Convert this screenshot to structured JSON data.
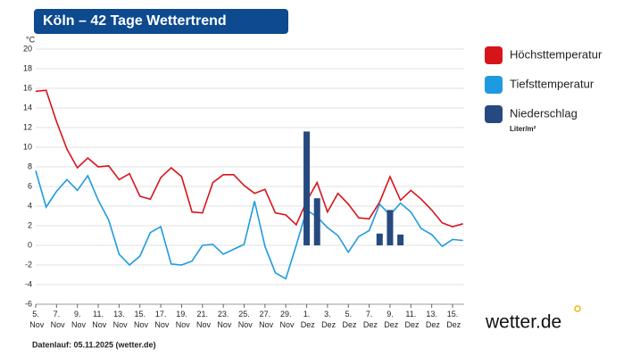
{
  "chart_data": {
    "type": "line",
    "title": "Köln – 42 Tage Wettertrend",
    "y_unit": "°C",
    "footer": "Datenlauf: 05.11.2025 (wetter.de)",
    "logo": "wetter.de",
    "categories": [
      "5. Nov",
      null,
      "7. Nov",
      null,
      "9. Nov",
      null,
      "11. Nov",
      null,
      "13. Nov",
      null,
      "15. Nov",
      null,
      "17. Nov",
      null,
      "19. Nov",
      null,
      "21. Nov",
      null,
      "23. Nov",
      null,
      "25. Nov",
      null,
      "27. Nov",
      null,
      "29. Nov",
      null,
      "1. Dez",
      null,
      "3. Dez",
      null,
      "5. Dez",
      null,
      "7. Dez",
      null,
      "9. Dez",
      null,
      "11. Dez",
      null,
      "13. Dez",
      null,
      "15. Dez",
      null
    ],
    "series": [
      {
        "name": "Höchsttemperatur",
        "color": "#d7141a",
        "values": [
          15.7,
          15.8,
          12.6,
          9.8,
          7.9,
          8.9,
          8.0,
          8.1,
          6.7,
          7.3,
          5.0,
          4.7,
          6.9,
          7.9,
          7.0,
          3.4,
          3.3,
          6.4,
          7.2,
          7.2,
          6.1,
          5.3,
          5.7,
          3.3,
          3.1,
          2.1,
          4.5,
          6.4,
          3.4,
          5.3,
          4.2,
          2.8,
          2.7,
          4.4,
          7.0,
          4.6,
          5.6,
          4.7,
          3.6,
          2.3,
          1.9,
          2.2
        ]
      },
      {
        "name": "Tiefsttemperatur",
        "color": "#1e9be0",
        "values": [
          7.6,
          3.9,
          5.5,
          6.7,
          5.6,
          7.1,
          4.6,
          2.6,
          -0.9,
          -2.0,
          -1.1,
          1.3,
          1.9,
          -1.9,
          -2.0,
          -1.6,
          0.0,
          0.1,
          -0.9,
          -0.4,
          0.1,
          4.5,
          -0.1,
          -2.8,
          -3.4,
          0.0,
          3.6,
          2.9,
          1.8,
          1.0,
          -0.7,
          0.9,
          1.5,
          4.2,
          3.1,
          4.3,
          3.4,
          1.7,
          1.1,
          -0.1,
          0.6,
          0.5
        ]
      },
      {
        "name": "Niederschlag",
        "unit": "Liter/m²",
        "type": "bar",
        "color": "#264a80",
        "values": [
          null,
          null,
          null,
          null,
          null,
          null,
          null,
          null,
          null,
          null,
          null,
          null,
          null,
          null,
          null,
          null,
          null,
          null,
          null,
          null,
          null,
          null,
          null,
          null,
          null,
          null,
          11.6,
          4.8,
          null,
          null,
          null,
          null,
          null,
          1.2,
          3.6,
          1.1,
          null,
          null,
          null,
          null,
          null,
          null
        ]
      }
    ],
    "ylim": [
      -6,
      20
    ],
    "yticks": [
      -6,
      -4,
      -2,
      0,
      2,
      4,
      6,
      8,
      10,
      12,
      14,
      16,
      18,
      20
    ],
    "grid": true
  }
}
